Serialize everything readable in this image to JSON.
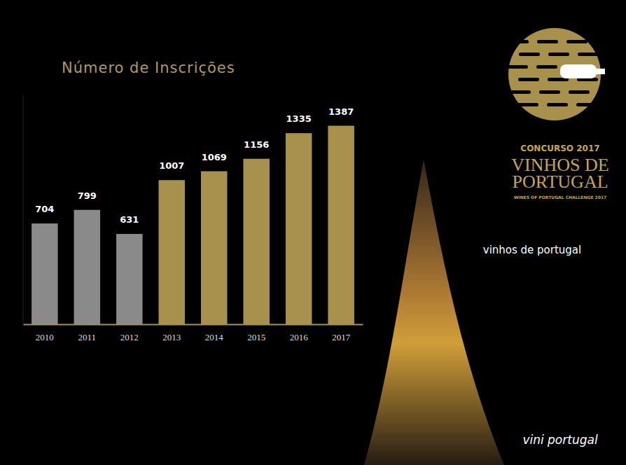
{
  "chart_data": {
    "type": "bar",
    "title": "Número de Inscrições",
    "categories": [
      "2010",
      "2011",
      "2012",
      "2013",
      "2014",
      "2015",
      "2016",
      "2017"
    ],
    "values": [
      704,
      799,
      631,
      1007,
      1069,
      1156,
      1335,
      1387
    ],
    "colors": [
      "#8a8a8a",
      "#8a8a8a",
      "#8a8a8a",
      "#a8914c",
      "#a8914c",
      "#a8914c",
      "#a8914c",
      "#a8914c"
    ],
    "ylim": [
      0,
      1600
    ],
    "data_labels": true,
    "tick_labels": "x",
    "grid": false,
    "annotations": [
      "CONCURSO 2017",
      "VINHOS DE",
      "PORTUGAL",
      "WINES OF PORTUGAL CHALLENGE 2017",
      "vinhos de portugal",
      "vini portugal"
    ]
  }
}
